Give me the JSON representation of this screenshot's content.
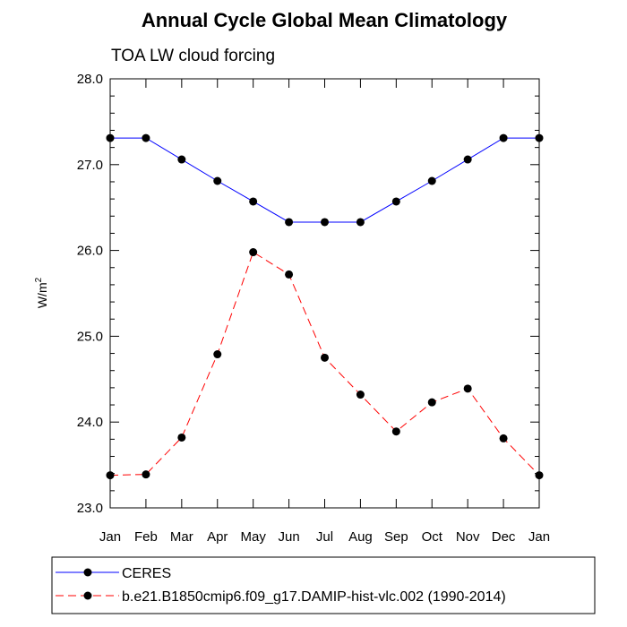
{
  "chart_data": {
    "type": "line",
    "title": "Annual Cycle Global Mean Climatology",
    "subtitle": "TOA LW cloud forcing",
    "ylabel": "W/m",
    "ylabel_superscript": "2",
    "ylim": [
      23.0,
      28.0
    ],
    "yticks": [
      "23.0",
      "24.0",
      "25.0",
      "26.0",
      "27.0",
      "28.0"
    ],
    "categories": [
      "Jan",
      "Feb",
      "Mar",
      "Apr",
      "May",
      "Jun",
      "Jul",
      "Aug",
      "Sep",
      "Oct",
      "Nov",
      "Dec",
      "Jan"
    ],
    "grid": false,
    "legend_position": "bottom",
    "series": [
      {
        "name": "CERES",
        "color": "#0000ff",
        "dash": "solid",
        "values": [
          27.31,
          27.31,
          27.06,
          26.81,
          26.57,
          26.33,
          26.33,
          26.33,
          26.57,
          26.81,
          27.06,
          27.31,
          27.31
        ]
      },
      {
        "name": "b.e21.B1850cmip6.f09_g17.DAMIP-hist-vlc.002 (1990-2014)",
        "color": "#ff0000",
        "dash": "dashed",
        "values": [
          23.38,
          23.39,
          23.82,
          24.79,
          25.98,
          25.72,
          24.75,
          24.32,
          23.89,
          24.23,
          24.39,
          23.81,
          23.38
        ]
      }
    ]
  }
}
